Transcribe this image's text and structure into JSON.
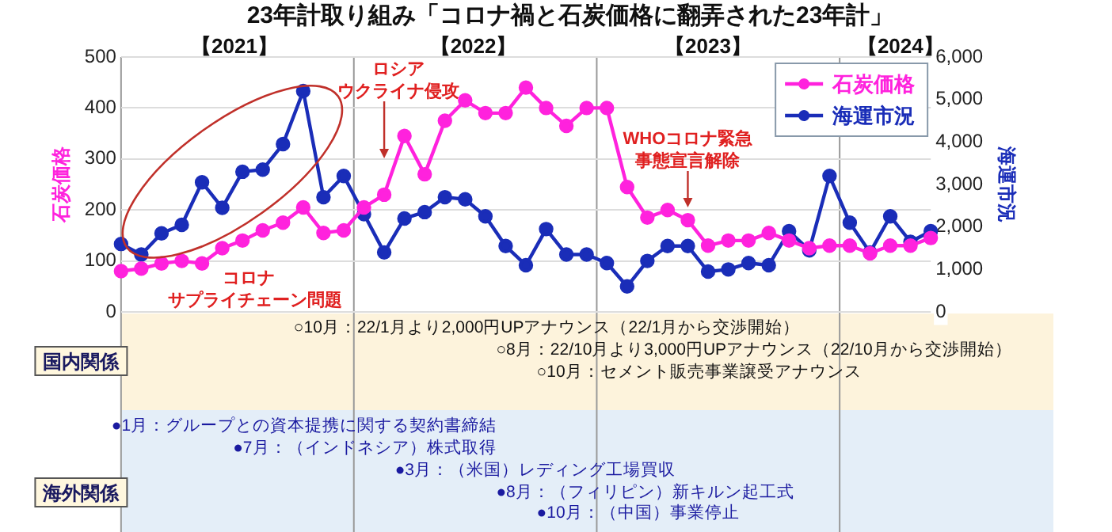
{
  "chart_data": {
    "type": "line",
    "title": "23年計取り組み「コロナ禍と石炭価格に翻弄された23年計」",
    "ylabel": "石炭価格",
    "y2label": "海運市況",
    "categories": [
      null,
      null,
      null,
      null,
      null,
      null,
      null,
      null,
      null,
      null,
      null,
      null,
      null,
      null,
      null,
      null,
      null,
      null,
      null,
      null,
      null,
      null,
      null,
      null,
      null,
      null,
      null,
      null,
      null,
      null,
      null,
      null,
      null,
      null,
      null,
      null,
      null,
      null,
      null,
      null,
      null
    ],
    "ylim": [
      0,
      500
    ],
    "yticks": [
      0,
      100,
      200,
      300,
      400,
      500
    ],
    "y2lim": [
      0,
      6000
    ],
    "y2ticks": [
      0,
      {
        "value": 1000,
        "label": "1,000"
      },
      {
        "value": 2000,
        "label": "2,000"
      },
      {
        "value": 3000,
        "label": "3,000"
      },
      {
        "value": 4000,
        "label": "4,000"
      },
      {
        "value": 5000,
        "label": "5,000"
      },
      {
        "value": 6000,
        "label": "6,000"
      }
    ],
    "series": [
      {
        "name": "石炭価格",
        "color": "#ff22dd",
        "values": [
          80,
          85,
          95,
          100,
          95,
          125,
          140,
          160,
          175,
          205,
          155,
          160,
          205,
          230,
          345,
          270,
          375,
          415,
          390,
          390,
          440,
          400,
          365,
          400,
          400,
          245,
          185,
          200,
          180,
          130,
          140,
          140,
          155,
          140,
          125,
          130,
          130,
          115,
          130,
          130,
          145
        ]
      },
      {
        "name": "海運市況",
        "color": "#1a2db8",
        "axis": "y2",
        "values": [
          1600,
          1350,
          1850,
          2050,
          3050,
          2450,
          3300,
          3350,
          3950,
          5200,
          2700,
          3200,
          2300,
          1400,
          2200,
          2350,
          2700,
          2650,
          2250,
          1550,
          1100,
          1950,
          1350,
          1350,
          1150,
          600,
          1200,
          1550,
          1550,
          950,
          1000,
          1150,
          1100,
          1900,
          1450,
          3200,
          2100,
          1400,
          2250,
          1650,
          1900
        ]
      }
    ],
    "grid": "y",
    "legend": "top right",
    "marker": "circle",
    "annotations": [
      "【2021】",
      "【2022】",
      "【2023】",
      "【2024】",
      "ロシアウクライナ侵攻",
      "WHOコロナ緊急事態宣言解除",
      "コロナサプライチェーン問題",
      "国内関係",
      "○10月：22/1月より2,000円UPアナウンス（22/1月から交渉開始）",
      "○8月：22/10月より3,000円UPアナウンス（22/10月から交渉開始）",
      "○10月：セメント販売事業譲受アナウンス",
      "海外関係",
      "●1月：グループとの資本提携に関する契約書締結",
      "●7月：（インドネシア）株式取得",
      "●3月：（米国）レディング工場買収",
      "●8月：（フィリピン）新キルン起工式",
      "●10月：（中国）事業停止"
    ]
  }
}
